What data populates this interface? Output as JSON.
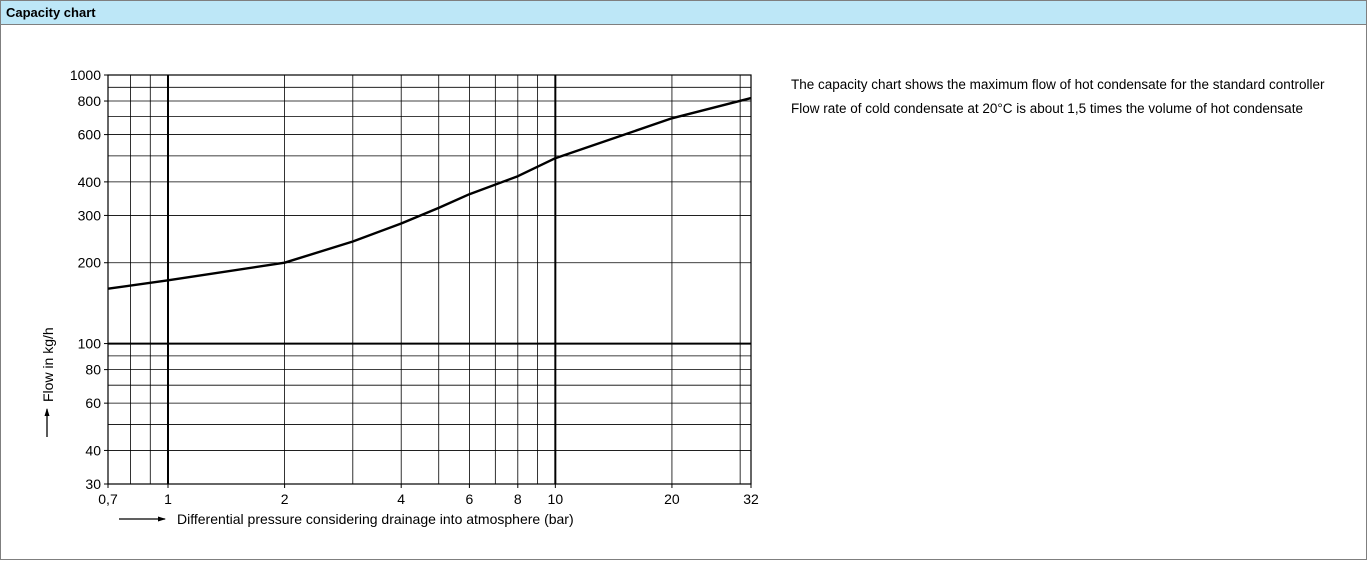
{
  "header": {
    "title": "Capacity chart"
  },
  "description": {
    "paragraphs": [
      "The capacity chart shows the maximum flow of hot condensate for the standard controller",
      "Flow rate of cold condensate at 20°C is about 1,5 times the volume of hot condensate"
    ]
  },
  "colors": {
    "header_background": "#bde7f7",
    "border": "#7f7f7f",
    "line": "#000000"
  },
  "chart_data": {
    "type": "line",
    "scale": "log-log",
    "grid": true,
    "xlabel": "Differential pressure considering drainage into atmosphere (bar)",
    "ylabel": "Flow in kg/h",
    "xlim": [
      0.7,
      32
    ],
    "ylim": [
      30,
      1000
    ],
    "x_ticks": [
      0.7,
      1,
      2,
      4,
      6,
      8,
      10,
      20,
      32
    ],
    "x_tick_labels": [
      "0,7",
      "1",
      "2",
      "4",
      "6",
      "8",
      "10",
      "20",
      "32"
    ],
    "x_gridlines": [
      0.8,
      0.9,
      1,
      2,
      3,
      4,
      5,
      6,
      7,
      8,
      9,
      10,
      20,
      30
    ],
    "x_major_gridlines": [
      1,
      10
    ],
    "y_ticks": [
      30,
      40,
      60,
      80,
      100,
      200,
      300,
      400,
      600,
      800,
      1000
    ],
    "y_tick_labels": [
      "30",
      "40",
      "60",
      "80",
      "100",
      "200",
      "300",
      "400",
      "600",
      "800",
      "1000"
    ],
    "y_gridlines": [
      40,
      50,
      60,
      70,
      80,
      90,
      100,
      200,
      300,
      400,
      500,
      600,
      700,
      800,
      900
    ],
    "y_major_gridlines": [
      100
    ],
    "series": [
      {
        "x": [
          0.7,
          1,
          2,
          3,
          4,
          5,
          6,
          8,
          10,
          20,
          32
        ],
        "y": [
          160,
          172,
          200,
          240,
          280,
          320,
          360,
          420,
          490,
          690,
          820
        ]
      }
    ]
  }
}
